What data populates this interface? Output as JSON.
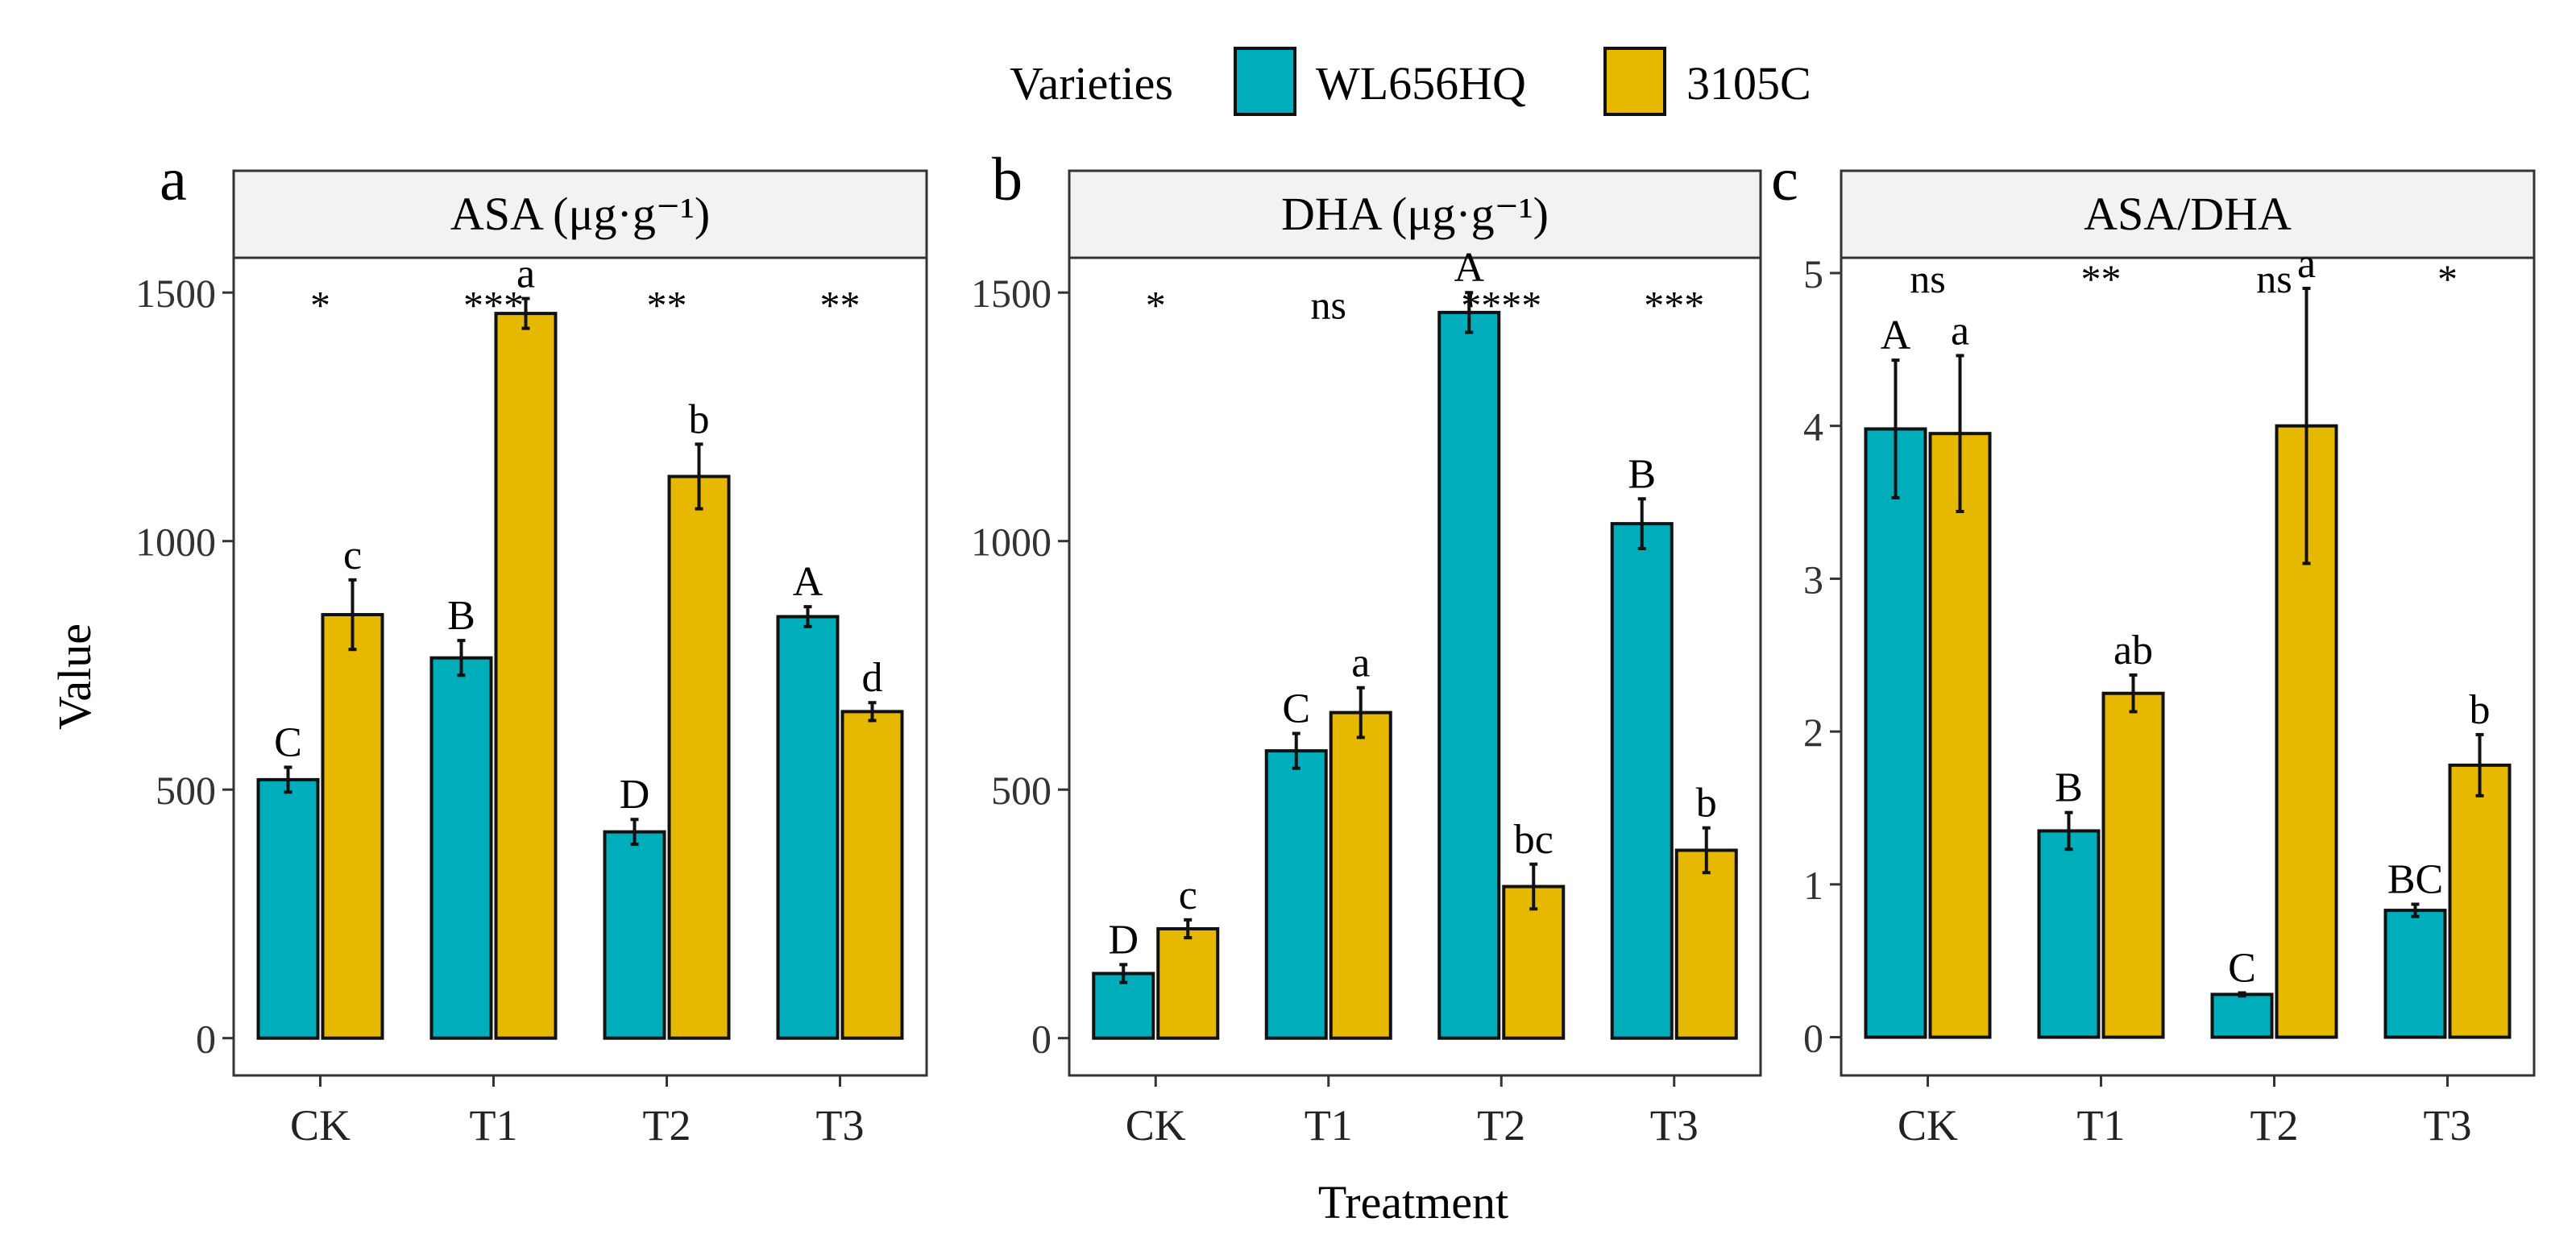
{
  "legend": {
    "title": "Varieties",
    "items": [
      {
        "name": "WL656HQ",
        "color": "#00AEBB"
      },
      {
        "name": "3105C",
        "color": "#E7B800"
      }
    ]
  },
  "axes": {
    "ylabel": "Value",
    "xlabel": "Treatment"
  },
  "chart_data": [
    {
      "type": "bar",
      "panel": "a",
      "strip": "ASA (μg·g⁻¹)",
      "categories": [
        "CK",
        "T1",
        "T2",
        "T3"
      ],
      "ylim": [
        -75,
        1570
      ],
      "yticks": [
        0,
        500,
        1000,
        1500
      ],
      "series": [
        {
          "name": "WL656HQ",
          "values": [
            520,
            765,
            415,
            848
          ],
          "errors": [
            25,
            35,
            25,
            20
          ],
          "letters": [
            "C",
            "B",
            "D",
            "A"
          ]
        },
        {
          "name": "3105C",
          "values": [
            852,
            1458,
            1130,
            657
          ],
          "errors": [
            70,
            30,
            65,
            18
          ],
          "letters": [
            "c",
            "a",
            "b",
            "d"
          ]
        }
      ],
      "significance": [
        "*",
        "***",
        "**",
        "**"
      ],
      "sig_y": 1480
    },
    {
      "type": "bar",
      "panel": "b",
      "strip": "DHA (μg·g⁻¹)",
      "categories": [
        "CK",
        "T1",
        "T2",
        "T3"
      ],
      "ylim": [
        -75,
        1570
      ],
      "yticks": [
        0,
        500,
        1000,
        1500
      ],
      "series": [
        {
          "name": "WL656HQ",
          "values": [
            130,
            578,
            1460,
            1035
          ],
          "errors": [
            18,
            35,
            40,
            50
          ],
          "letters": [
            "D",
            "C",
            "A",
            "B"
          ]
        },
        {
          "name": "3105C",
          "values": [
            220,
            655,
            305,
            378
          ],
          "errors": [
            18,
            50,
            45,
            45
          ],
          "letters": [
            "c",
            "a",
            "bc",
            "b"
          ]
        }
      ],
      "significance": [
        "*",
        "ns",
        "****",
        "***"
      ],
      "sig_y": 1480
    },
    {
      "type": "bar",
      "panel": "c",
      "strip": "ASA/DHA",
      "categories": [
        "CK",
        "T1",
        "T2",
        "T3"
      ],
      "ylim": [
        -0.25,
        5.1
      ],
      "yticks": [
        0,
        1,
        2,
        3,
        4,
        5
      ],
      "series": [
        {
          "name": "WL656HQ",
          "values": [
            3.98,
            1.35,
            0.28,
            0.83
          ],
          "errors": [
            0.45,
            0.12,
            0.01,
            0.04
          ],
          "letters": [
            "A",
            "B",
            "C",
            "BC"
          ]
        },
        {
          "name": "3105C",
          "values": [
            3.95,
            2.25,
            4.0,
            1.78
          ],
          "errors": [
            0.51,
            0.12,
            0.9,
            0.2
          ],
          "letters": [
            "a",
            "ab",
            "a",
            "b"
          ]
        }
      ],
      "significance": [
        "ns",
        "**",
        "ns",
        "*"
      ],
      "sig_y": 4.98
    }
  ]
}
